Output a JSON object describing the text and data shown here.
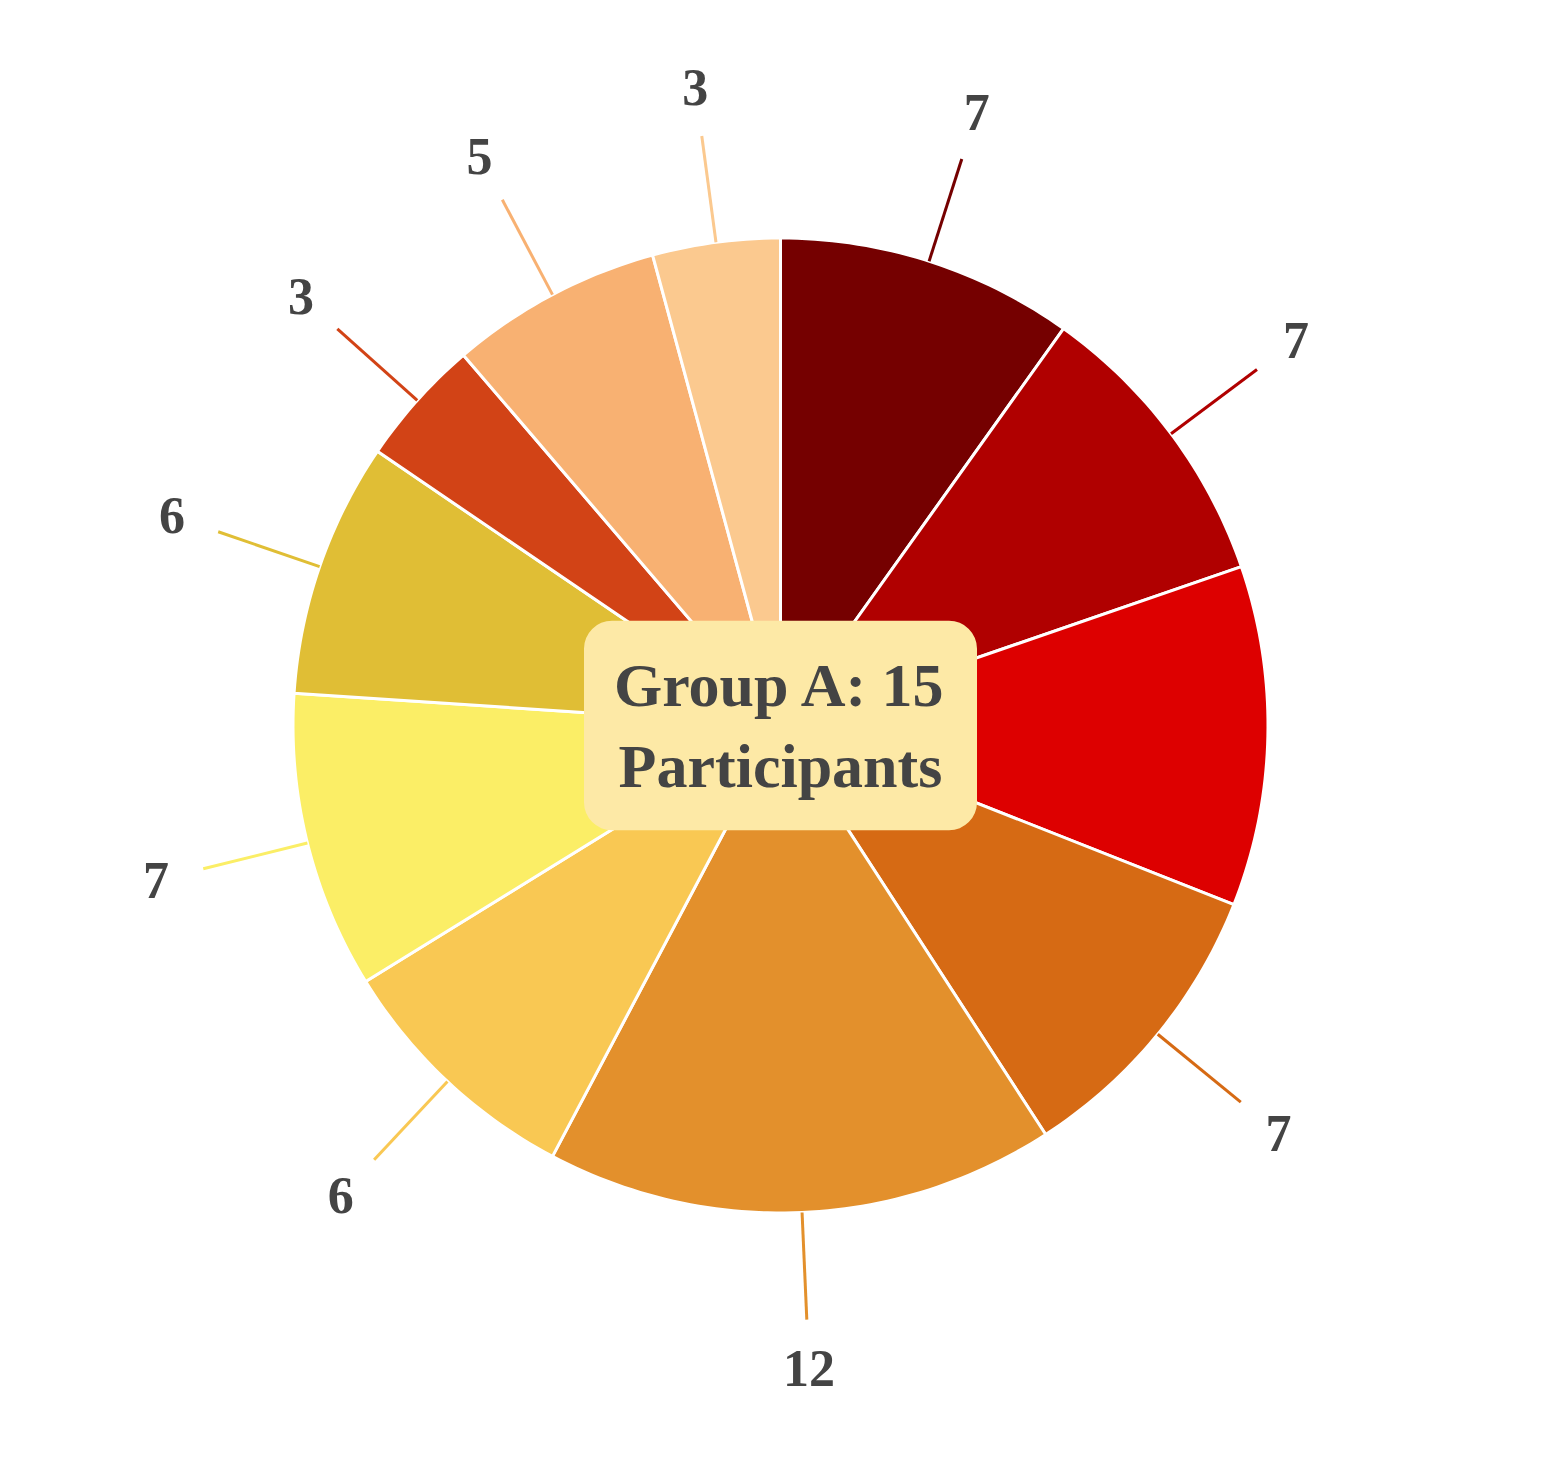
{
  "chart_data": {
    "type": "pie",
    "categories": [
      null,
      null,
      null,
      null,
      null,
      null,
      null,
      null,
      null,
      null,
      null
    ],
    "values": [
      7,
      7,
      8,
      7,
      12,
      6,
      7,
      6,
      3,
      5,
      3
    ],
    "value_labels": [
      "7",
      "7",
      null,
      "7",
      "12",
      "6",
      "7",
      "6",
      "3",
      "5",
      "3"
    ],
    "colors": [
      "#750000",
      "#b00000",
      "#dd0000",
      "#d66a14",
      "#e3902c",
      "#f9c853",
      "#fbee66",
      "#e0be35",
      "#d24316",
      "#f8b172",
      "#fbc98f"
    ],
    "annotations": [
      "Group A: 15\nParticipants"
    ]
  }
}
